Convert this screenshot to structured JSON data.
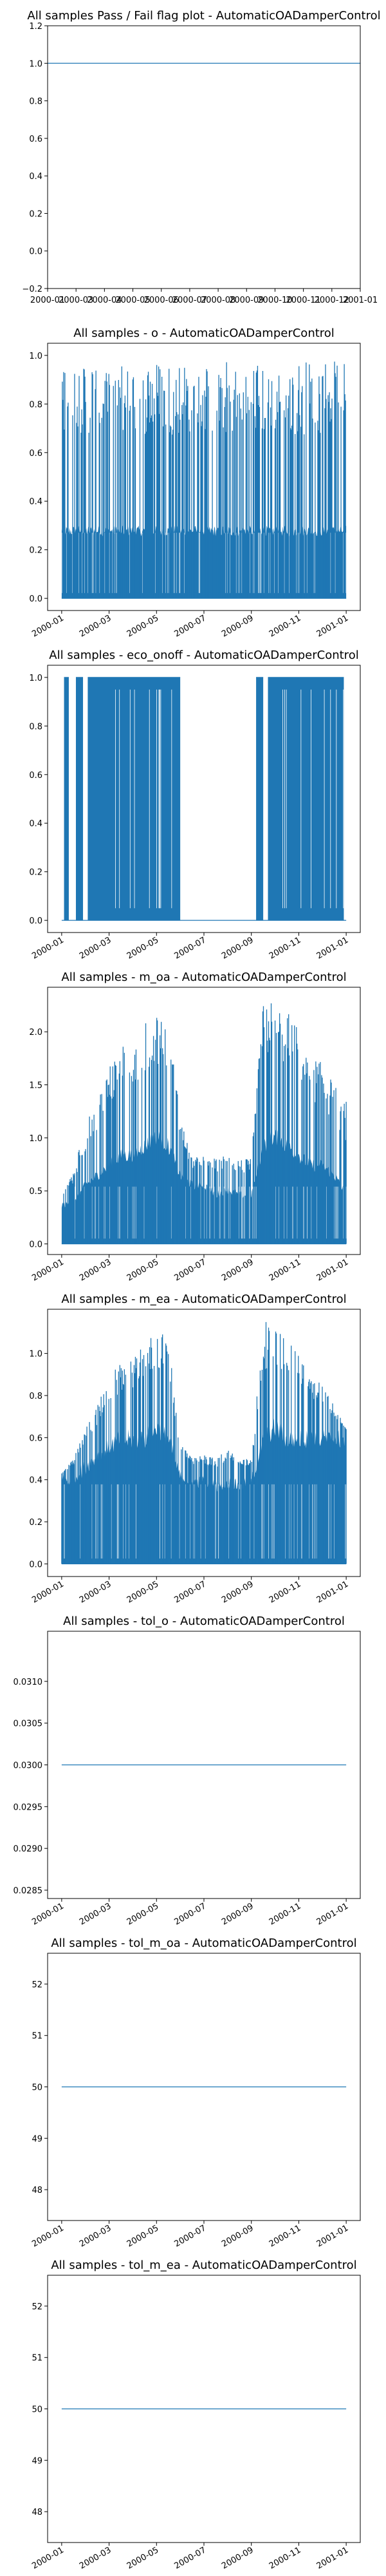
{
  "chart_data": [
    {
      "type": "line",
      "title": "All samples Pass / Fail flag plot - AutomaticOADamperControl",
      "series": [
        {
          "values": [
            1.0,
            1.0
          ]
        }
      ],
      "x": [
        "2000-01",
        "2001-01"
      ],
      "yticks": [
        "1.2",
        "1.0",
        "0.8",
        "0.6",
        "0.4",
        "0.2",
        "0.0",
        "−0.2"
      ],
      "ylim": [
        -0.2,
        1.2
      ],
      "xticks": [
        "2000-01",
        "2000-03",
        "2000-04",
        "2000-05",
        "2000-06",
        "2000-07",
        "2000-08",
        "2000-09",
        "2000-10",
        "2000-11",
        "2000-12",
        "2001-01"
      ],
      "xtick_rotation": 0
    },
    {
      "type": "area",
      "title": "All samples - o - AutomaticOADamperControl",
      "yticks": [
        "1.0",
        "0.8",
        "0.6",
        "0.4",
        "0.2",
        "0.0"
      ],
      "ylim": [
        -0.05,
        1.05
      ],
      "xticks": [
        "2000-01",
        "2000-03",
        "2000-05",
        "2000-07",
        "2000-09",
        "2000-11",
        "2001-01"
      ],
      "xtick_rotation": 30,
      "envelope_months": [
        0,
        1,
        2,
        3,
        4,
        5,
        6,
        7,
        8,
        9,
        10,
        11,
        12
      ],
      "envelope_max": [
        0.98,
        0.98,
        0.98,
        0.98,
        0.98,
        0.98,
        0.98,
        0.98,
        0.98,
        0.98,
        0.98,
        0.98,
        0.98
      ],
      "envelope_dense": [
        0.3,
        0.3,
        0.3,
        0.3,
        0.3,
        0.3,
        0.3,
        0.3,
        0.3,
        0.3,
        0.3,
        0.3,
        0.3
      ]
    },
    {
      "type": "area",
      "title": "All samples - eco_onoff - AutomaticOADamperControl",
      "yticks": [
        "1.0",
        "0.8",
        "0.6",
        "0.4",
        "0.2",
        "0.0"
      ],
      "ylim": [
        -0.05,
        1.05
      ],
      "xticks": [
        "2000-01",
        "2000-03",
        "2000-05",
        "2000-07",
        "2000-09",
        "2000-11",
        "2001-01"
      ],
      "xtick_rotation": 30,
      "on_periods_months": [
        [
          0.1,
          0.3
        ],
        [
          0.6,
          0.9
        ],
        [
          1.1,
          5.0
        ],
        [
          8.2,
          8.5
        ],
        [
          8.7,
          11.9
        ]
      ]
    },
    {
      "type": "area",
      "title": "All samples - m_oa - AutomaticOADamperControl",
      "yticks": [
        "2.0",
        "1.5",
        "1.0",
        "0.5",
        "0.0"
      ],
      "ylim": [
        -0.1,
        2.42
      ],
      "xticks": [
        "2000-01",
        "2000-03",
        "2000-05",
        "2000-07",
        "2000-09",
        "2000-11",
        "2001-01"
      ],
      "xtick_rotation": 30,
      "envelope_months": [
        0,
        0.5,
        1,
        1.5,
        2,
        2.5,
        3,
        3.5,
        4,
        4.5,
        5,
        5.5,
        6,
        6.5,
        7,
        7.5,
        8,
        8.5,
        9,
        9.5,
        10,
        10.5,
        11,
        11.5,
        12
      ],
      "envelope_max": [
        0.5,
        0.7,
        1.1,
        1.4,
        1.7,
        1.85,
        2.0,
        2.1,
        2.2,
        2.15,
        1.2,
        0.8,
        0.85,
        0.8,
        0.85,
        0.8,
        0.8,
        2.3,
        2.3,
        2.2,
        2.1,
        1.8,
        1.7,
        1.5,
        1.35
      ],
      "envelope_dense": [
        0.4,
        0.4,
        0.6,
        0.7,
        0.8,
        0.9,
        0.9,
        1.0,
        1.1,
        1.0,
        0.7,
        0.6,
        0.6,
        0.5,
        0.55,
        0.5,
        0.5,
        1.0,
        1.1,
        1.0,
        0.9,
        0.8,
        0.8,
        0.7,
        0.5
      ]
    },
    {
      "type": "area",
      "title": "All samples - m_ea - AutomaticOADamperControl",
      "yticks": [
        "1.0",
        "0.8",
        "0.6",
        "0.4",
        "0.2",
        "0.0"
      ],
      "ylim": [
        -0.06,
        1.21
      ],
      "xticks": [
        "2000-01",
        "2000-03",
        "2000-05",
        "2000-07",
        "2000-09",
        "2000-11",
        "2001-01"
      ],
      "xtick_rotation": 30,
      "envelope_months": [
        0,
        0.5,
        1,
        1.5,
        2,
        2.5,
        3,
        3.5,
        4,
        4.5,
        5,
        5.5,
        6,
        6.5,
        7,
        7.5,
        8,
        8.5,
        9,
        9.5,
        10,
        10.5,
        11,
        11.5,
        12
      ],
      "envelope_max": [
        0.43,
        0.5,
        0.65,
        0.75,
        0.9,
        0.95,
        1.0,
        1.05,
        1.12,
        1.1,
        0.6,
        0.5,
        0.52,
        0.5,
        0.55,
        0.5,
        0.5,
        1.15,
        1.15,
        1.1,
        1.05,
        0.9,
        0.85,
        0.75,
        0.64
      ],
      "envelope_dense": [
        0.43,
        0.43,
        0.5,
        0.55,
        0.6,
        0.64,
        0.64,
        0.64,
        0.7,
        0.64,
        0.45,
        0.42,
        0.42,
        0.4,
        0.42,
        0.4,
        0.42,
        0.64,
        0.7,
        0.64,
        0.64,
        0.64,
        0.64,
        0.64,
        0.64
      ]
    },
    {
      "type": "line",
      "title": "All samples - tol_o - AutomaticOADamperControl",
      "series": [
        {
          "values": [
            0.03,
            0.03
          ]
        }
      ],
      "x": [
        "2000-01",
        "2001-01"
      ],
      "yticks": [
        "0.0310",
        "0.0305",
        "0.0300",
        "0.0295",
        "0.0290",
        "0.0285"
      ],
      "ylim": [
        0.0284,
        0.0316
      ],
      "xticks": [
        "2000-01",
        "2000-03",
        "2000-05",
        "2000-07",
        "2000-09",
        "2000-11",
        "2001-01"
      ],
      "xtick_rotation": 30
    },
    {
      "type": "line",
      "title": "All samples - tol_m_oa - AutomaticOADamperControl",
      "series": [
        {
          "values": [
            50,
            50
          ]
        }
      ],
      "x": [
        "2000-01",
        "2001-01"
      ],
      "yticks": [
        "52",
        "51",
        "50",
        "49",
        "48"
      ],
      "ylim": [
        47.4,
        52.6
      ],
      "xticks": [
        "2000-01",
        "2000-03",
        "2000-05",
        "2000-07",
        "2000-09",
        "2000-11",
        "2001-01"
      ],
      "xtick_rotation": 30
    },
    {
      "type": "line",
      "title": "All samples - tol_m_ea - AutomaticOADamperControl",
      "series": [
        {
          "values": [
            50,
            50
          ]
        }
      ],
      "x": [
        "2000-01",
        "2001-01"
      ],
      "yticks": [
        "52",
        "51",
        "50",
        "49",
        "48"
      ],
      "ylim": [
        47.4,
        52.6
      ],
      "xticks": [
        "2000-01",
        "2000-03",
        "2000-05",
        "2000-07",
        "2000-09",
        "2000-11",
        "2001-01"
      ],
      "xtick_rotation": 30
    }
  ]
}
